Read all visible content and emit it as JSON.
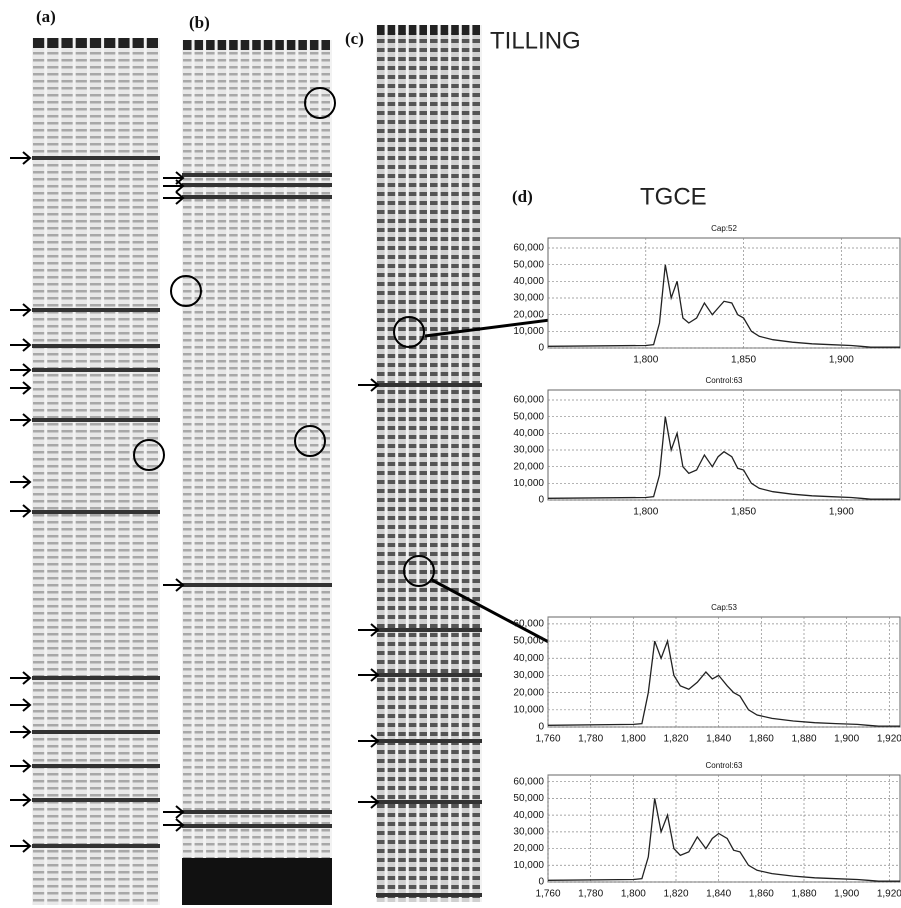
{
  "labels": {
    "a": "(a)",
    "b": "(b)",
    "c": "(c)",
    "d": "(d)",
    "tilling": "TILLING",
    "tgce": "TGCE"
  },
  "chart_data": [
    {
      "type": "line",
      "title": "Cap:52",
      "color": "#222222",
      "grid": true,
      "x": [
        1750,
        1800,
        1804,
        1807,
        1810,
        1813,
        1816,
        1819,
        1822,
        1826,
        1830,
        1834,
        1837,
        1840,
        1844,
        1847,
        1850,
        1854,
        1858,
        1865,
        1875,
        1885,
        1895,
        1905,
        1910,
        1915,
        1930
      ],
      "values": [
        1000,
        1500,
        2000,
        15000,
        50000,
        30000,
        40000,
        18000,
        15000,
        18000,
        27000,
        20000,
        24000,
        28000,
        27000,
        20000,
        18000,
        10000,
        7000,
        5000,
        3500,
        2500,
        2000,
        1500,
        1000,
        500,
        500
      ],
      "xlim": [
        1750,
        1930
      ],
      "xticks": [
        {
          "value": 1800,
          "label": "1,800"
        },
        {
          "value": 1850,
          "label": "1,850"
        },
        {
          "value": 1900,
          "label": "1,900"
        }
      ],
      "ylim": [
        0,
        66000
      ],
      "yticks": [
        0,
        {
          "value": 10000,
          "label": "10,000"
        },
        {
          "value": 20000,
          "label": "20,000"
        },
        {
          "value": 30000,
          "label": "30,000"
        },
        {
          "value": 40000,
          "label": "40,000"
        },
        {
          "value": 50000,
          "label": "50,000"
        },
        {
          "value": 60000,
          "label": "60,000"
        }
      ]
    },
    {
      "type": "line",
      "title": "Control:63",
      "color": "#222222",
      "grid": true,
      "x": [
        1750,
        1800,
        1804,
        1807,
        1810,
        1813,
        1816,
        1819,
        1822,
        1826,
        1830,
        1834,
        1837,
        1840,
        1844,
        1847,
        1850,
        1854,
        1858,
        1865,
        1875,
        1885,
        1895,
        1905,
        1910,
        1915,
        1930
      ],
      "values": [
        1000,
        1500,
        2000,
        15000,
        50000,
        30000,
        40000,
        20000,
        16000,
        18000,
        27000,
        20000,
        26000,
        29000,
        26000,
        19000,
        18000,
        10000,
        7000,
        5000,
        3500,
        2500,
        2000,
        1500,
        1000,
        500,
        500
      ],
      "xlim": [
        1750,
        1930
      ],
      "xticks": [
        {
          "value": 1800,
          "label": "1,800"
        },
        {
          "value": 1850,
          "label": "1,850"
        },
        {
          "value": 1900,
          "label": "1,900"
        }
      ],
      "ylim": [
        0,
        66000
      ],
      "yticks": [
        0,
        {
          "value": 10000,
          "label": "10,000"
        },
        {
          "value": 20000,
          "label": "20,000"
        },
        {
          "value": 30000,
          "label": "30,000"
        },
        {
          "value": 40000,
          "label": "40,000"
        },
        {
          "value": 50000,
          "label": "50,000"
        },
        {
          "value": 60000,
          "label": "60,000"
        }
      ]
    },
    {
      "type": "line",
      "title": "Cap:53",
      "color": "#222222",
      "grid": true,
      "x": [
        1760,
        1800,
        1804,
        1807,
        1810,
        1813,
        1816,
        1819,
        1822,
        1826,
        1830,
        1834,
        1837,
        1840,
        1844,
        1847,
        1850,
        1854,
        1858,
        1865,
        1875,
        1885,
        1895,
        1905,
        1910,
        1915,
        1925
      ],
      "values": [
        1000,
        1500,
        2000,
        20000,
        50000,
        40000,
        50000,
        30000,
        24000,
        22000,
        26000,
        32000,
        28000,
        30000,
        24000,
        20000,
        18000,
        10000,
        7000,
        5000,
        3500,
        2500,
        2000,
        1500,
        1000,
        500,
        500
      ],
      "xlim": [
        1760,
        1925
      ],
      "xticks": [
        {
          "value": 1760,
          "label": "1,760"
        },
        {
          "value": 1780,
          "label": "1,780"
        },
        {
          "value": 1800,
          "label": "1,800"
        },
        {
          "value": 1820,
          "label": "1,820"
        },
        {
          "value": 1840,
          "label": "1,840"
        },
        {
          "value": 1860,
          "label": "1,860"
        },
        {
          "value": 1880,
          "label": "1,880"
        },
        {
          "value": 1900,
          "label": "1,900"
        },
        {
          "value": 1920,
          "label": "1,920"
        }
      ],
      "ylim": [
        0,
        64000
      ],
      "yticks": [
        0,
        {
          "value": 10000,
          "label": "10,000"
        },
        {
          "value": 20000,
          "label": "20,000"
        },
        {
          "value": 30000,
          "label": "30,000"
        },
        {
          "value": 40000,
          "label": "40,000"
        },
        {
          "value": 50000,
          "label": "50,000"
        },
        {
          "value": 60000,
          "label": "60,000"
        }
      ]
    },
    {
      "type": "line",
      "title": "Control:63",
      "color": "#222222",
      "grid": true,
      "x": [
        1760,
        1800,
        1804,
        1807,
        1810,
        1813,
        1816,
        1819,
        1822,
        1826,
        1830,
        1834,
        1837,
        1840,
        1844,
        1847,
        1850,
        1854,
        1858,
        1865,
        1875,
        1885,
        1895,
        1905,
        1910,
        1915,
        1925
      ],
      "values": [
        1000,
        1500,
        2000,
        15000,
        50000,
        30000,
        40000,
        20000,
        16000,
        18000,
        27000,
        20000,
        26000,
        29000,
        26000,
        19000,
        18000,
        10000,
        7000,
        5000,
        3500,
        2500,
        2000,
        1500,
        1000,
        500,
        500
      ],
      "xlim": [
        1760,
        1925
      ],
      "xticks": [
        {
          "value": 1760,
          "label": "1,760"
        },
        {
          "value": 1780,
          "label": "1,780"
        },
        {
          "value": 1800,
          "label": "1,800"
        },
        {
          "value": 1820,
          "label": "1,820"
        },
        {
          "value": 1840,
          "label": "1,840"
        },
        {
          "value": 1860,
          "label": "1,860"
        },
        {
          "value": 1880,
          "label": "1,880"
        },
        {
          "value": 1900,
          "label": "1,900"
        },
        {
          "value": 1920,
          "label": "1,920"
        }
      ],
      "ylim": [
        0,
        64000
      ],
      "yticks": [
        0,
        {
          "value": 10000,
          "label": "10,000"
        },
        {
          "value": 20000,
          "label": "20,000"
        },
        {
          "value": 30000,
          "label": "30,000"
        },
        {
          "value": 40000,
          "label": "40,000"
        },
        {
          "value": 50000,
          "label": "50,000"
        },
        {
          "value": 60000,
          "label": "60,000"
        }
      ]
    }
  ]
}
